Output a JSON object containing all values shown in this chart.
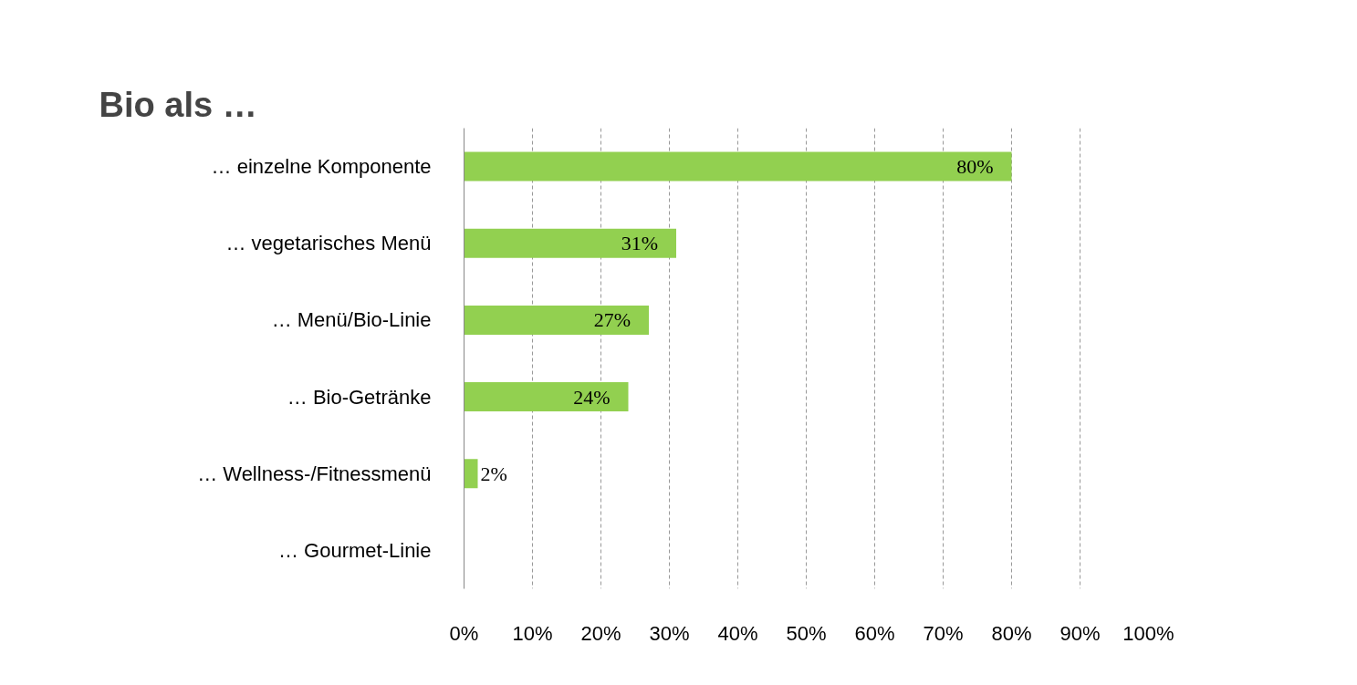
{
  "chart_data": {
    "type": "bar",
    "orientation": "horizontal",
    "title": "Bio als …",
    "categories": [
      "… einzelne Komponente",
      "… vegetarisches Menü",
      "… Menü/Bio-Linie",
      "… Bio-Getränke",
      "… Wellness-/Fitnessmenü",
      "… Gourmet-Linie"
    ],
    "values": [
      80,
      31,
      27,
      24,
      2,
      null
    ],
    "value_labels": [
      "80%",
      "31%",
      "27%",
      "24%",
      "2%",
      null
    ],
    "color": "#92d050",
    "xlim": [
      0,
      100
    ],
    "xticks": [
      {
        "value": 0,
        "label": "0%"
      },
      {
        "value": 10,
        "label": "10%"
      },
      {
        "value": 20,
        "label": "20%"
      },
      {
        "value": 30,
        "label": "30%"
      },
      {
        "value": 40,
        "label": "40%"
      },
      {
        "value": 50,
        "label": "50%"
      },
      {
        "value": 60,
        "label": "60%"
      },
      {
        "value": 70,
        "label": "70%"
      },
      {
        "value": 80,
        "label": "80%"
      },
      {
        "value": 90,
        "label": "90%"
      },
      {
        "value": 100,
        "label": "100%"
      }
    ],
    "grid": "x"
  }
}
